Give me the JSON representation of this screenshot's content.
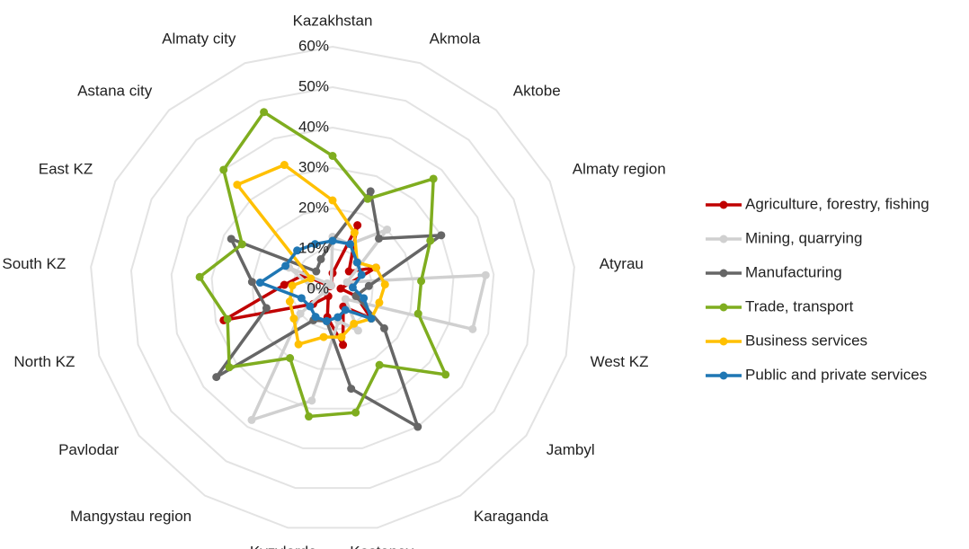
{
  "chart_data": {
    "type": "radar",
    "categories": [
      "Kazakhstan",
      "Akmola",
      "Aktobe",
      "Almaty region",
      "Atyrau",
      "West KZ",
      "Jambyl",
      "Karaganda",
      "Kostanay",
      "Kyzylorda",
      "Mangystau region",
      "Pavlodar",
      "North KZ",
      "South KZ",
      "East KZ",
      "Astana city",
      "Almaty city"
    ],
    "ylim": [
      0,
      60
    ],
    "yticks": [
      {
        "value": 0,
        "label": "0%"
      },
      {
        "value": 10,
        "label": "10%"
      },
      {
        "value": 20,
        "label": "20%"
      },
      {
        "value": 30,
        "label": "30%"
      },
      {
        "value": 40,
        "label": "40%"
      },
      {
        "value": 50,
        "label": "50%"
      },
      {
        "value": 60,
        "label": "60%"
      }
    ],
    "grid": true,
    "legend": "right",
    "series": [
      {
        "name": "Agriculture, forestry, fishing",
        "color": "#c00000",
        "values": [
          4,
          17,
          6,
          12,
          2,
          6,
          12,
          5,
          14,
          7,
          2,
          6,
          28,
          12,
          8,
          1,
          1
        ]
      },
      {
        "name": "Mining, quarrying",
        "color": "#d0d0d0",
        "values": [
          13,
          12,
          20,
          4,
          38,
          36,
          4,
          12,
          8,
          28,
          38,
          10,
          2,
          5,
          12,
          2,
          1
        ]
      },
      {
        "name": "Manufacturing",
        "color": "#666666",
        "values": [
          12,
          26,
          17,
          30,
          9,
          6,
          16,
          40,
          25,
          8,
          9,
          36,
          17,
          20,
          28,
          6,
          8
        ]
      },
      {
        "name": "Trade, transport",
        "color": "#7fad1f",
        "values": [
          33,
          24,
          37,
          27,
          22,
          22,
          35,
          22,
          31,
          32,
          20,
          32,
          27,
          33,
          25,
          40,
          47
        ]
      },
      {
        "name": "Business services",
        "color": "#ffc000",
        "values": [
          22,
          15,
          9,
          12,
          13,
          12,
          12,
          10,
          12,
          12,
          16,
          12,
          11,
          10,
          6,
          35,
          33
        ]
      },
      {
        "name": "Public and private services",
        "color": "#1f77b4",
        "values": [
          12,
          12,
          9,
          8,
          5,
          8,
          12,
          6,
          7,
          8,
          8,
          7,
          8,
          18,
          13,
          13,
          12
        ]
      }
    ]
  }
}
